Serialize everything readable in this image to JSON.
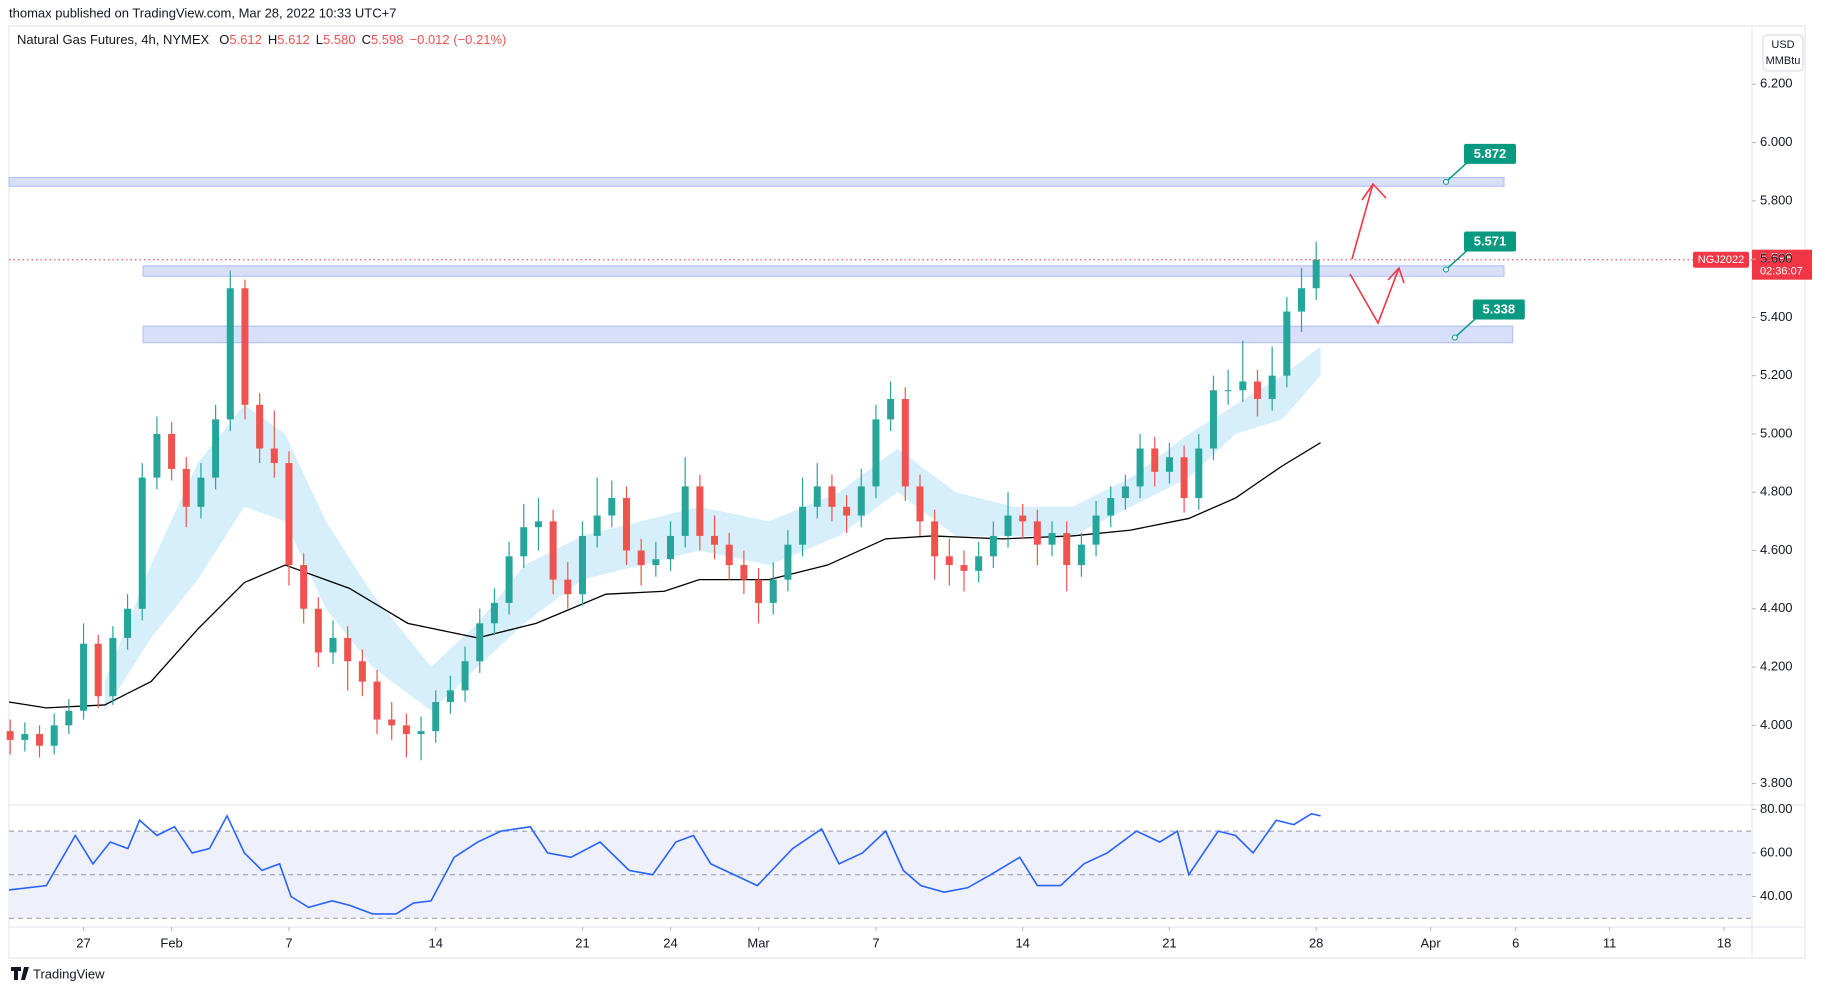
{
  "header": {
    "published": "thomax published on TradingView.com, Mar 28, 2022 10:33 UTC+7"
  },
  "footer": {
    "brand": "TradingView"
  },
  "chart_data": [
    {
      "type": "candlestick",
      "title": "Natural Gas Futures, 4h, NYMEX",
      "legend": [
        {
          "key": "O",
          "value": "5.612"
        },
        {
          "key": "H",
          "value": "5.612"
        },
        {
          "key": "L",
          "value": "5.580"
        },
        {
          "key": "C",
          "value": "5.598"
        }
      ],
      "change": "−0.012 (−0.21%)",
      "currency": "USD",
      "unit": "MMBtu",
      "up_color": "#26a69a",
      "down_color": "#ef5350",
      "xlim": [
        -2.54,
        56.85
      ],
      "xticks": [
        {
          "value": 0,
          "label": "27"
        },
        {
          "value": 3,
          "label": "Feb"
        },
        {
          "value": 7,
          "label": "7"
        },
        {
          "value": 12,
          "label": "14"
        },
        {
          "value": 17,
          "label": "21"
        },
        {
          "value": 20,
          "label": "24"
        },
        {
          "value": 23,
          "label": "Mar"
        },
        {
          "value": 27,
          "label": "7"
        },
        {
          "value": 32,
          "label": "14"
        },
        {
          "value": 37,
          "label": "21"
        },
        {
          "value": 42,
          "label": "28"
        },
        {
          "value": 45.9,
          "label": "Apr"
        },
        {
          "value": 48.8,
          "label": "6"
        },
        {
          "value": 52,
          "label": "11"
        },
        {
          "value": 55.9,
          "label": "18"
        }
      ],
      "ylim": [
        3.73,
        6.4
      ],
      "yticks": [
        {
          "value": 3.8,
          "label": "3.800"
        },
        {
          "value": 4.0,
          "label": "4.000"
        },
        {
          "value": 4.2,
          "label": "4.200"
        },
        {
          "value": 4.4,
          "label": "4.400"
        },
        {
          "value": 4.6,
          "label": "4.600"
        },
        {
          "value": 4.8,
          "label": "4.800"
        },
        {
          "value": 5.0,
          "label": "5.000"
        },
        {
          "value": 5.2,
          "label": "5.200"
        },
        {
          "value": 5.4,
          "label": "5.400"
        },
        {
          "value": 5.6,
          "label": "5.600"
        },
        {
          "value": 5.8,
          "label": "5.800"
        },
        {
          "value": 6.0,
          "label": "6.000"
        },
        {
          "value": 6.2,
          "label": "6.200"
        }
      ],
      "x": [
        -2.5,
        -2,
        -1.5,
        -1,
        -0.5,
        0,
        0.5,
        1,
        1.5,
        2,
        2.5,
        3,
        3.5,
        4,
        4.5,
        5,
        5.5,
        6,
        6.5,
        7,
        7.5,
        8,
        8.5,
        9,
        9.5,
        10,
        10.5,
        11,
        11.5,
        12,
        12.5,
        13,
        13.5,
        14,
        14.5,
        15,
        15.5,
        16,
        16.5,
        17,
        17.5,
        18,
        18.5,
        19,
        19.5,
        20,
        20.5,
        21,
        21.5,
        22,
        22.5,
        23,
        23.5,
        24,
        24.5,
        25,
        25.5,
        26,
        26.5,
        27,
        27.5,
        28,
        28.5,
        29,
        29.5,
        30,
        30.5,
        31,
        31.5,
        32,
        32.5,
        33,
        33.5,
        34,
        34.5,
        35,
        35.5,
        36,
        36.5,
        37,
        37.5,
        38,
        38.5,
        39,
        39.5,
        40,
        40.5,
        41,
        41.5,
        42
      ],
      "candles": [
        [
          3.98,
          4.02,
          3.9,
          3.95
        ],
        [
          3.95,
          4.01,
          3.91,
          3.97
        ],
        [
          3.97,
          4.0,
          3.89,
          3.93
        ],
        [
          3.93,
          4.04,
          3.9,
          4.0
        ],
        [
          4.0,
          4.09,
          3.97,
          4.05
        ],
        [
          4.05,
          4.35,
          4.02,
          4.28
        ],
        [
          4.28,
          4.31,
          4.06,
          4.1
        ],
        [
          4.1,
          4.34,
          4.07,
          4.3
        ],
        [
          4.3,
          4.45,
          4.26,
          4.4
        ],
        [
          4.4,
          4.9,
          4.36,
          4.85
        ],
        [
          4.85,
          5.06,
          4.81,
          5.0
        ],
        [
          5.0,
          5.04,
          4.84,
          4.88
        ],
        [
          4.88,
          4.92,
          4.68,
          4.75
        ],
        [
          4.75,
          4.9,
          4.71,
          4.85
        ],
        [
          4.85,
          5.1,
          4.81,
          5.05
        ],
        [
          5.05,
          5.56,
          5.01,
          5.5
        ],
        [
          5.5,
          5.53,
          5.05,
          5.1
        ],
        [
          5.1,
          5.14,
          4.9,
          4.95
        ],
        [
          4.95,
          5.08,
          4.85,
          4.9
        ],
        [
          4.9,
          4.94,
          4.48,
          4.55
        ],
        [
          4.55,
          4.59,
          4.35,
          4.4
        ],
        [
          4.4,
          4.44,
          4.2,
          4.25
        ],
        [
          4.25,
          4.36,
          4.21,
          4.3
        ],
        [
          4.3,
          4.34,
          4.12,
          4.22
        ],
        [
          4.22,
          4.26,
          4.1,
          4.15
        ],
        [
          4.15,
          4.19,
          3.97,
          4.02
        ],
        [
          4.02,
          4.08,
          3.95,
          4.0
        ],
        [
          4.0,
          4.04,
          3.89,
          3.97
        ],
        [
          3.97,
          4.03,
          3.88,
          3.98
        ],
        [
          3.98,
          4.12,
          3.94,
          4.08
        ],
        [
          4.08,
          4.17,
          4.04,
          4.12
        ],
        [
          4.12,
          4.27,
          4.08,
          4.22
        ],
        [
          4.22,
          4.4,
          4.18,
          4.35
        ],
        [
          4.35,
          4.47,
          4.31,
          4.42
        ],
        [
          4.42,
          4.63,
          4.38,
          4.58
        ],
        [
          4.58,
          4.76,
          4.54,
          4.68
        ],
        [
          4.68,
          4.78,
          4.6,
          4.7
        ],
        [
          4.7,
          4.74,
          4.45,
          4.5
        ],
        [
          4.5,
          4.56,
          4.4,
          4.45
        ],
        [
          4.45,
          4.7,
          4.41,
          4.65
        ],
        [
          4.65,
          4.85,
          4.61,
          4.72
        ],
        [
          4.72,
          4.84,
          4.68,
          4.78
        ],
        [
          4.78,
          4.82,
          4.55,
          4.6
        ],
        [
          4.6,
          4.64,
          4.48,
          4.55
        ],
        [
          4.55,
          4.63,
          4.51,
          4.57
        ],
        [
          4.57,
          4.7,
          4.53,
          4.65
        ],
        [
          4.65,
          4.92,
          4.61,
          4.82
        ],
        [
          4.82,
          4.86,
          4.6,
          4.65
        ],
        [
          4.65,
          4.72,
          4.57,
          4.62
        ],
        [
          4.62,
          4.66,
          4.5,
          4.55
        ],
        [
          4.55,
          4.6,
          4.45,
          4.5
        ],
        [
          4.5,
          4.54,
          4.35,
          4.42
        ],
        [
          4.42,
          4.56,
          4.38,
          4.5
        ],
        [
          4.5,
          4.67,
          4.46,
          4.62
        ],
        [
          4.62,
          4.85,
          4.58,
          4.75
        ],
        [
          4.75,
          4.9,
          4.71,
          4.82
        ],
        [
          4.82,
          4.86,
          4.7,
          4.75
        ],
        [
          4.75,
          4.79,
          4.66,
          4.72
        ],
        [
          4.72,
          4.88,
          4.68,
          4.82
        ],
        [
          4.82,
          5.1,
          4.78,
          5.05
        ],
        [
          5.05,
          5.18,
          5.01,
          5.12
        ],
        [
          5.12,
          5.16,
          4.77,
          4.82
        ],
        [
          4.82,
          4.86,
          4.65,
          4.7
        ],
        [
          4.7,
          4.74,
          4.5,
          4.58
        ],
        [
          4.58,
          4.64,
          4.48,
          4.55
        ],
        [
          4.55,
          4.6,
          4.46,
          4.53
        ],
        [
          4.53,
          4.63,
          4.49,
          4.58
        ],
        [
          4.58,
          4.7,
          4.54,
          4.65
        ],
        [
          4.65,
          4.8,
          4.61,
          4.72
        ],
        [
          4.72,
          4.76,
          4.64,
          4.7
        ],
        [
          4.7,
          4.74,
          4.55,
          4.62
        ],
        [
          4.62,
          4.7,
          4.58,
          4.66
        ],
        [
          4.66,
          4.7,
          4.46,
          4.55
        ],
        [
          4.55,
          4.66,
          4.51,
          4.62
        ],
        [
          4.62,
          4.77,
          4.58,
          4.72
        ],
        [
          4.72,
          4.82,
          4.68,
          4.78
        ],
        [
          4.78,
          4.86,
          4.74,
          4.82
        ],
        [
          4.82,
          5.0,
          4.78,
          4.95
        ],
        [
          4.95,
          4.99,
          4.82,
          4.87
        ],
        [
          4.87,
          4.97,
          4.83,
          4.92
        ],
        [
          4.92,
          4.96,
          4.73,
          4.78
        ],
        [
          4.78,
          5.0,
          4.74,
          4.95
        ],
        [
          4.95,
          5.2,
          4.91,
          5.15
        ],
        [
          5.15,
          5.22,
          5.1,
          5.15
        ],
        [
          5.15,
          5.32,
          5.11,
          5.18
        ],
        [
          5.18,
          5.22,
          5.06,
          5.12
        ],
        [
          5.12,
          5.3,
          5.08,
          5.2
        ],
        [
          5.2,
          5.47,
          5.16,
          5.42
        ],
        [
          5.42,
          5.57,
          5.35,
          5.5
        ],
        [
          5.5,
          5.66,
          5.46,
          5.598
        ]
      ],
      "band": {
        "color": "#d6effa",
        "x": [
          0.72,
          2.3,
          3.89,
          5.48,
          6.87,
          8.26,
          9.85,
          11.84,
          13.43,
          15.02,
          17.0,
          18.99,
          20.98,
          23.36,
          25.74,
          27.73,
          29.72,
          31.7,
          33.69,
          35.68,
          37.66,
          39.25,
          40.84,
          42.15
        ],
        "upper": [
          4.15,
          4.55,
          4.9,
          5.1,
          5.0,
          4.7,
          4.45,
          4.2,
          4.35,
          4.55,
          4.65,
          4.7,
          4.75,
          4.7,
          4.8,
          4.95,
          4.8,
          4.75,
          4.75,
          4.85,
          5.0,
          5.1,
          5.2,
          5.3
        ],
        "lower": [
          4.05,
          4.3,
          4.5,
          4.75,
          4.7,
          4.4,
          4.2,
          4.05,
          4.2,
          4.35,
          4.5,
          4.55,
          4.6,
          4.55,
          4.65,
          4.8,
          4.65,
          4.65,
          4.65,
          4.75,
          4.85,
          5.0,
          5.05,
          5.2
        ]
      },
      "ma": {
        "color": "#000000",
        "x": [
          -2.54,
          -1.27,
          0.72,
          2.3,
          3.89,
          5.48,
          6.87,
          9.06,
          11.05,
          13.43,
          15.42,
          17.8,
          19.79,
          20.98,
          23.36,
          25.35,
          27.33,
          28.92,
          31.31,
          33.69,
          35.68,
          37.66,
          39.25,
          40.84,
          42.15
        ],
        "values": [
          4.08,
          4.06,
          4.07,
          4.15,
          4.33,
          4.49,
          4.55,
          4.47,
          4.35,
          4.3,
          4.35,
          4.45,
          4.46,
          4.5,
          4.5,
          4.55,
          4.64,
          4.65,
          4.64,
          4.65,
          4.67,
          4.71,
          4.78,
          4.89,
          4.97
        ]
      },
      "zones": [
        {
          "top": 5.88,
          "bottom": 5.85,
          "x0": -2.54,
          "x1": 48.4,
          "level": 5.872
        },
        {
          "top": 5.577,
          "bottom": 5.541,
          "x0": 2.03,
          "x1": 48.4,
          "level": 5.571
        },
        {
          "top": 5.37,
          "bottom": 5.313,
          "x0": 2.03,
          "x1": 48.7,
          "level": 5.338
        }
      ],
      "zone_color": "#d3dcfb",
      "label_color": "#089981",
      "last_price": {
        "ticker": "NGJ2022",
        "value": 5.598,
        "countdown": "02:36:07",
        "color": "#f23645"
      }
    },
    {
      "type": "line",
      "xlim": [
        -2.54,
        56.85
      ],
      "ylim": [
        26,
        82
      ],
      "yticks": [
        {
          "value": 40,
          "label": "40.00"
        },
        {
          "value": 60,
          "label": "60.00"
        },
        {
          "value": 80,
          "label": "80.00"
        }
      ],
      "levels": [
        30,
        50,
        70
      ],
      "fill_color": "#eef1fc",
      "series": [
        {
          "color": "#2962ff",
          "x": [
            -2.54,
            -1.27,
            -0.28,
            0.32,
            0.91,
            1.51,
            1.91,
            2.5,
            3.1,
            3.7,
            4.29,
            4.89,
            5.48,
            6.08,
            6.68,
            7.07,
            7.67,
            8.47,
            9.06,
            9.85,
            10.65,
            11.24,
            11.84,
            12.63,
            13.43,
            14.22,
            15.22,
            15.81,
            16.61,
            17.6,
            18.59,
            19.39,
            20.18,
            20.78,
            21.37,
            22.17,
            22.96,
            24.16,
            25.15,
            25.74,
            26.54,
            27.33,
            27.93,
            28.53,
            29.32,
            30.12,
            30.91,
            31.9,
            32.5,
            33.29,
            34.09,
            34.88,
            35.88,
            36.67,
            37.27,
            37.66,
            38.66,
            39.25,
            39.85,
            40.64,
            41.24,
            41.84,
            42.15
          ],
          "values": [
            43,
            45,
            68,
            55,
            65,
            62,
            75,
            68,
            72,
            60,
            62,
            77,
            60,
            52,
            55,
            40,
            35,
            38,
            36,
            32,
            32,
            37,
            38,
            58,
            65,
            70,
            72,
            60,
            58,
            65,
            52,
            50,
            65,
            68,
            55,
            50,
            45,
            62,
            71,
            55,
            60,
            70,
            52,
            45,
            42,
            44,
            50,
            58,
            45,
            45,
            55,
            60,
            70,
            65,
            70,
            50,
            70,
            68,
            60,
            75,
            73,
            78,
            77
          ]
        }
      ]
    }
  ]
}
